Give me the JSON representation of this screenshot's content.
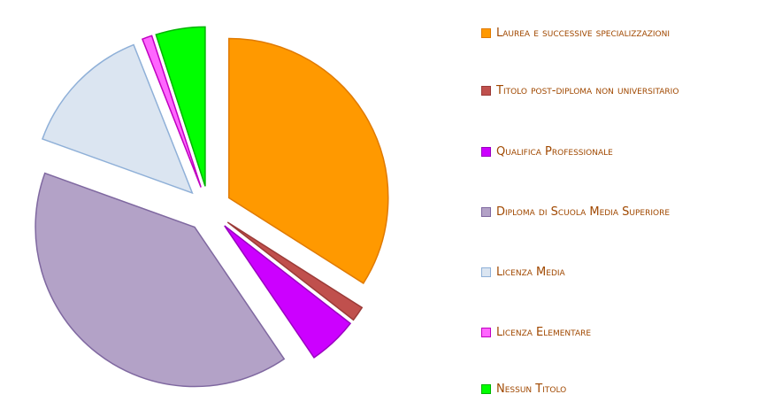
{
  "chart_data": {
    "type": "pie",
    "exploded": true,
    "categories": [
      "Laurea e successive specializzazioni",
      "Titolo post-diploma non universitario",
      "Qualifica Professionale",
      "Diploma di Scuola Media Superiore",
      "Licenza Media",
      "Licenza Elementare",
      "Nessun Titolo"
    ],
    "values": [
      34,
      1.5,
      5,
      40,
      13.5,
      1,
      5
    ],
    "colors": [
      "#ff9900",
      "#c0504d",
      "#cc00ff",
      "#b3a2c7",
      "#dbe5f1",
      "#ff66ff",
      "#00ff00"
    ],
    "edge_colors": [
      "#e07a00",
      "#9b3b38",
      "#9a00c0",
      "#7f68a0",
      "#8fb0d8",
      "#c000c0",
      "#00b400"
    ],
    "legend": "right"
  }
}
